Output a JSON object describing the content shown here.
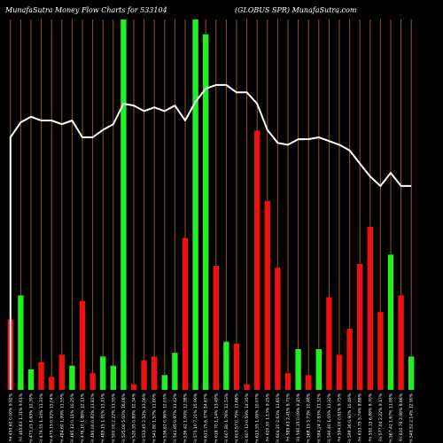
{
  "header": {
    "left": "MunafaSutra  Money Flow  Charts for 533104",
    "right": "(GLOBUS SPR) MunafaSutra.com"
  },
  "colors": {
    "background": "#000000",
    "grid": "#8B5A14",
    "up": "#22ee22",
    "down": "#ee1111",
    "line": "#ffffff"
  },
  "chart_data": {
    "type": "bar",
    "title": "MunafaSutra  Money Flow  Charts for 533104",
    "subtitle": "(GLOBUS SPR) MunafaSutra.com",
    "bars": [
      {
        "label": "18 Fri 459.60 0.00% 9.92%",
        "value": 19,
        "color": "red"
      },
      {
        "label": "11 Fri 465.63 1.31% 9.61%",
        "value": 25.5,
        "color": "green"
      },
      {
        "label": "04 Fri 473.21 1.63% 12.39%",
        "value": 5.5,
        "color": "green"
      },
      {
        "label": "28 Fri 479.55 1.34% 11.33%",
        "value": 7.5,
        "color": "red"
      },
      {
        "label": "21 Fri 475.15 0.92% 15.04%",
        "value": 3.5,
        "color": "red"
      },
      {
        "label": "14 Fri 484.60 1.99% 11.55%",
        "value": 9.5,
        "color": "red"
      },
      {
        "label": "07 Fri 485.12 0.11% 10.25%",
        "value": 6.5,
        "color": "green"
      },
      {
        "label": "31 Fri 476.10 1.86% 12.11%",
        "value": 24,
        "color": "red"
      },
      {
        "label": "24 Fri 480.00 0.82% 13.82%",
        "value": 4.5,
        "color": "red"
      },
      {
        "label": "17 Fri 489.15 1.91% 13.15%",
        "value": 9,
        "color": "green"
      },
      {
        "label": "10 Fri 500.00 2.22% 13.55%",
        "value": 6.5,
        "color": "green"
      },
      {
        "label": "03 Fri 525.00 5.00% 16.08%",
        "value": 100,
        "color": "green"
      },
      {
        "label": "27 Fri 520.35 0.89% 12.34%",
        "value": 1.5,
        "color": "red"
      },
      {
        "label": "20 Fri 533.45 2.52% 13.56%",
        "value": 8,
        "color": "red"
      },
      {
        "label": "13 Fri 541.80 1.57% 11.80%",
        "value": 9,
        "color": "red"
      },
      {
        "label": "06 Fri 536.62 0.96% 12.03%",
        "value": 4,
        "color": "green"
      },
      {
        "label": "29 Fri 541.85 0.97% 11.42%",
        "value": 10,
        "color": "green"
      },
      {
        "label": "22 Fri 536.42 1.00% 12.98%",
        "value": 41,
        "color": "red"
      },
      {
        "label": "15 Fri 575.10 7.21% 15.90%",
        "value": 100,
        "color": "green"
      },
      {
        "label": "08 Fri 611.75 6.37% 14.87%",
        "value": 96,
        "color": "green"
      },
      {
        "label": "01 Fri 618.70 1.14% 13.49%",
        "value": 33.5,
        "color": "red"
      },
      {
        "label": "25 Fri 607.80 1.76% 12.53%",
        "value": 13,
        "color": "green"
      },
      {
        "label": "18 Fri 603.57 0.70% 11.66%",
        "value": 12.5,
        "color": "red"
      },
      {
        "label": "11 Fri 607.12 0.59% 14.35%",
        "value": 1.5,
        "color": "red"
      },
      {
        "label": "04 Fri 613.55 1.06% 10.07%",
        "value": 70,
        "color": "red"
      },
      {
        "label": "28 Fri 620.50 1.13% 9.25%",
        "value": 51,
        "color": "red"
      },
      {
        "label": "21 Fri 604.20 2.63% 11.65%",
        "value": 33,
        "color": "red"
      },
      {
        "label": "14 Fri 589.63 2.41% 8.72%",
        "value": 4.5,
        "color": "red"
      },
      {
        "label": "07 Fri 590.15 0.09% 9.15%",
        "value": 11,
        "color": "green"
      },
      {
        "label": "31 Fri 568.15 3.73% 10.48%",
        "value": 4,
        "color": "red"
      },
      {
        "label": "24 Fri 584.24 2.83% 11.32%",
        "value": 11,
        "color": "green"
      },
      {
        "label": "17 Fri 590.40 1.05% 11.32%",
        "value": 25,
        "color": "red"
      },
      {
        "label": "10 Fri 594.00 0.61% 9.75%",
        "value": 9.5,
        "color": "red"
      },
      {
        "label": "03 Fri 599.36 0.90% 10.49%",
        "value": 16.5,
        "color": "red"
      },
      {
        "label": "26 Fri 633.75 5.74% 8.88%",
        "value": 34,
        "color": "red"
      },
      {
        "label": "19 Fri 590.15 6.88% 8.70%",
        "value": 44,
        "color": "red"
      },
      {
        "label": "12 Fri 577.04 2.22% 9.17%",
        "value": 21,
        "color": "red"
      },
      {
        "label": "05 Fri 567.42 1.67% 11.88%",
        "value": 36.5,
        "color": "green"
      },
      {
        "label": "29 Fri 610.76 2.98% 8.86%",
        "value": 25.5,
        "color": "red"
      },
      {
        "label": "22 Fri 549.52 2.14% 12.90%",
        "value": 9,
        "color": "green"
      }
    ],
    "line": [
      135,
      143,
      146,
      144,
      144,
      142,
      144,
      135,
      135,
      139,
      142,
      153,
      152,
      149,
      151,
      149,
      152,
      144,
      154,
      161,
      163,
      163,
      159,
      159,
      153,
      139,
      132,
      131,
      134,
      134,
      135,
      133,
      131,
      128,
      121,
      114,
      109,
      116,
      109,
      109
    ],
    "ylim": [
      0,
      100
    ],
    "line_ylim": [
      0,
      180
    ],
    "grid": true
  }
}
